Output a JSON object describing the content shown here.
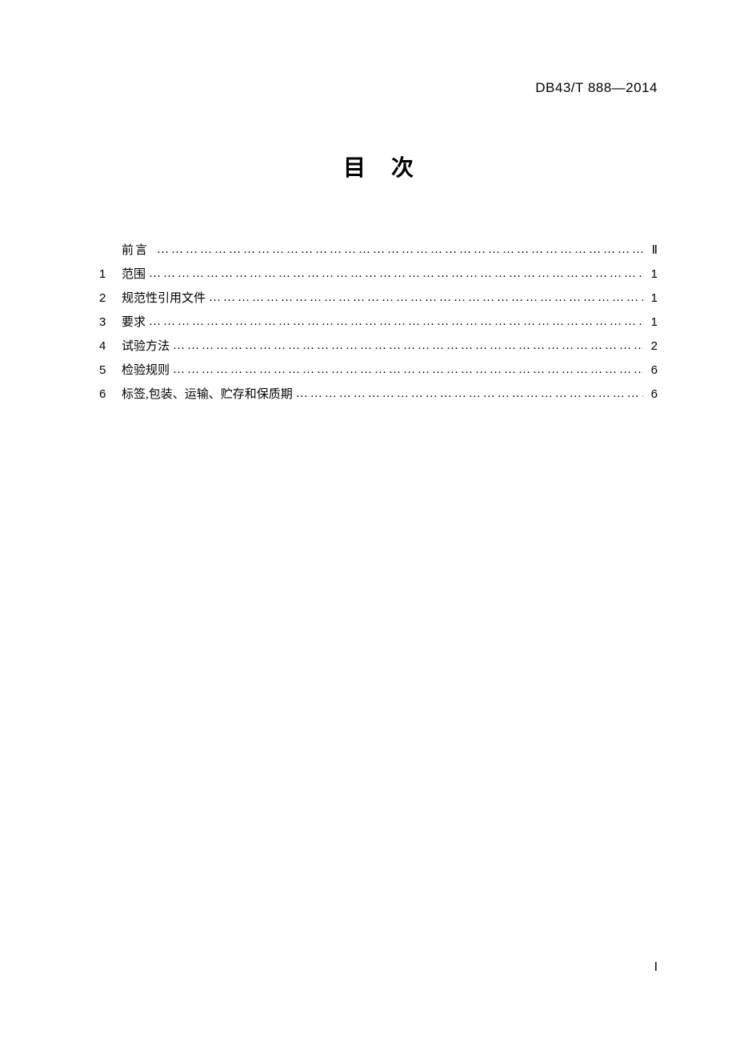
{
  "header": {
    "document_number": "DB43/T 888—2014"
  },
  "title": "目次",
  "toc": {
    "preface": {
      "label": "前言",
      "page": "Ⅱ"
    },
    "entries": [
      {
        "num": "1",
        "label": "范围",
        "page": "1"
      },
      {
        "num": "2",
        "label": "规范性引用文件",
        "page": "1"
      },
      {
        "num": "3",
        "label": "要求",
        "page": "1"
      },
      {
        "num": "4",
        "label": "试验方法",
        "page": "2"
      },
      {
        "num": "5",
        "label": "检验规则",
        "page": "6"
      },
      {
        "num": "6",
        "label": "标签,包装、运输、贮存和保质期",
        "page": "6"
      }
    ]
  },
  "page_number": "Ⅰ",
  "colors": {
    "background": "#ffffff",
    "text": "#000000"
  },
  "typography": {
    "body_font": "SimSun",
    "title_font": "SimHei",
    "body_fontsize": 15,
    "title_fontsize": 28,
    "docnum_fontsize": 17,
    "line_height": 30
  }
}
